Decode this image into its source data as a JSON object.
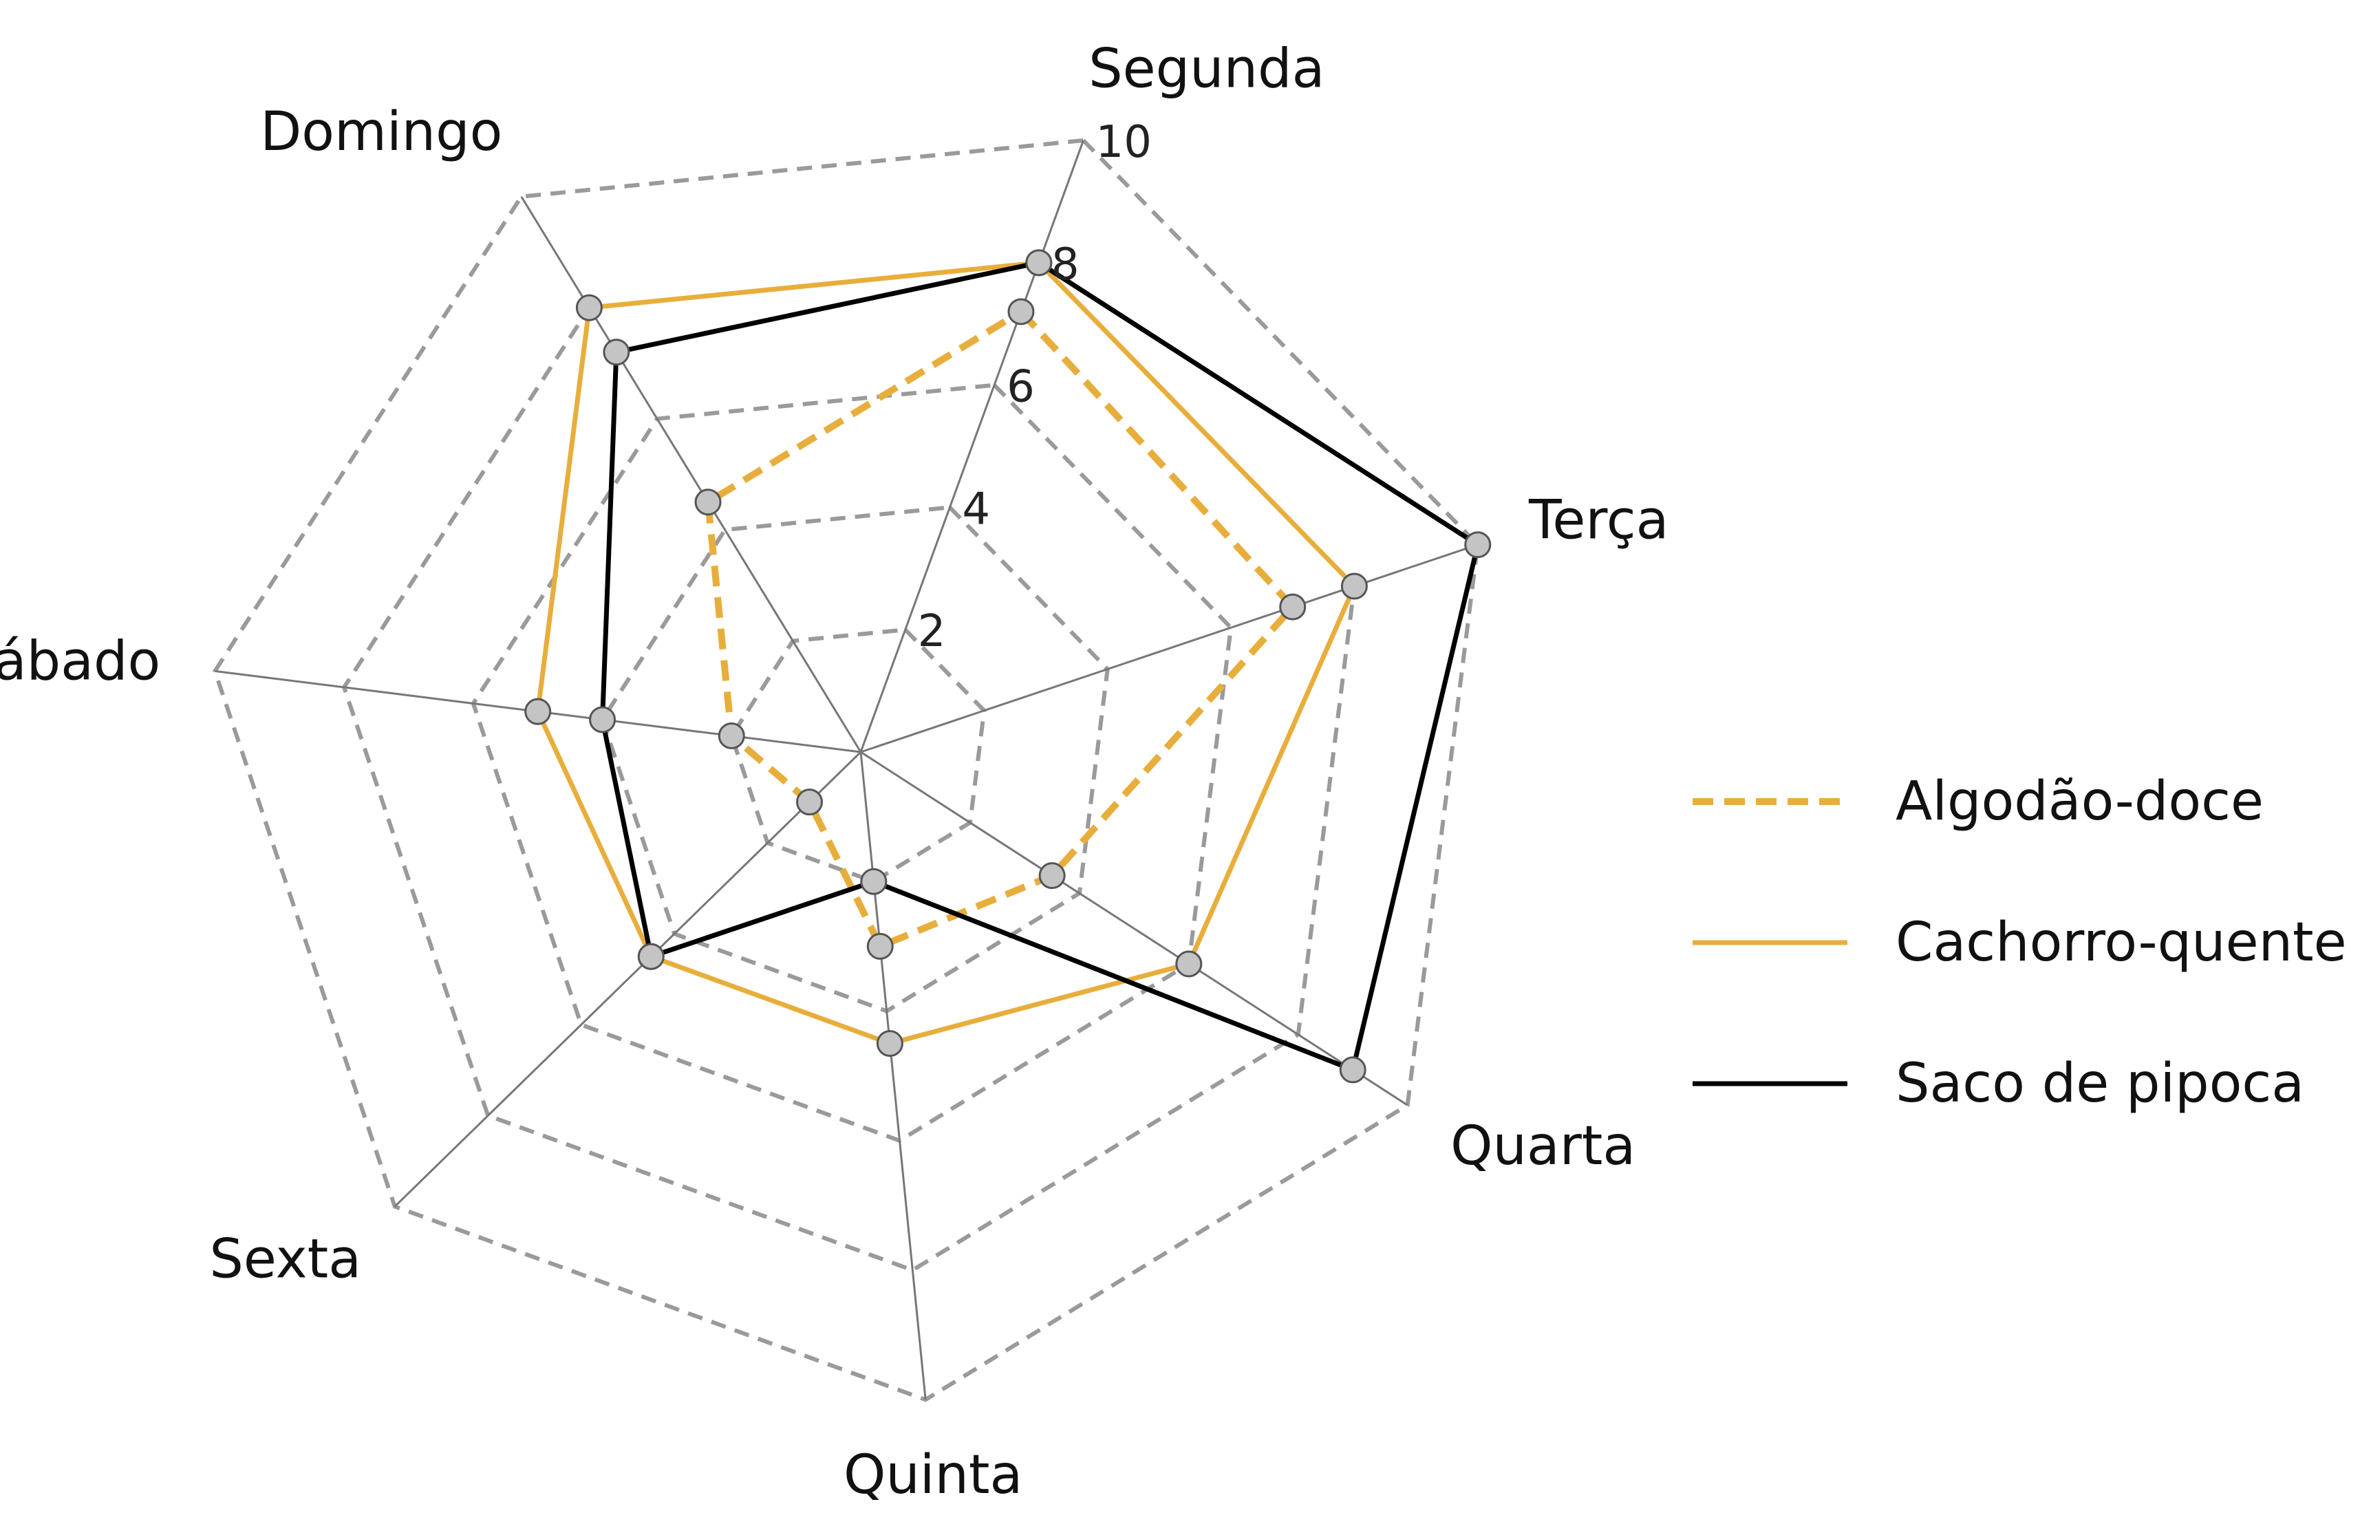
{
  "chart_data": {
    "type": "radar",
    "categories": [
      "Segunda",
      "Terça",
      "Quarta",
      "Quinta",
      "Sexta",
      "Sábado",
      "Domingo"
    ],
    "rlim": [
      0,
      10
    ],
    "rticks": [
      "2",
      "4",
      "6",
      "8",
      "10"
    ],
    "rtick_values": [
      2,
      4,
      6,
      8,
      10
    ],
    "grid": true,
    "legend_position": "right",
    "series": [
      {
        "name": "Algodão-doce",
        "values": [
          7.2,
          7.0,
          3.5,
          3.0,
          1.1,
          2.0,
          4.5
        ],
        "color": "#E8AE3C",
        "style": "dashed"
      },
      {
        "name": "Cachorro-quente",
        "values": [
          8.0,
          8.0,
          6.0,
          4.5,
          4.5,
          5.0,
          8.0
        ],
        "color": "#E8AE3C",
        "style": "solid"
      },
      {
        "name": "Saco de pipoca",
        "values": [
          8.0,
          10.0,
          9.0,
          2.0,
          4.5,
          4.0,
          7.2
        ],
        "color": "#000000",
        "style": "solid"
      }
    ]
  }
}
